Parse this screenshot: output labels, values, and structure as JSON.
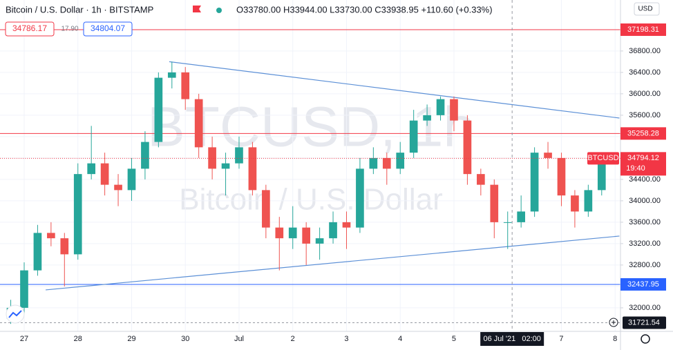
{
  "header": {
    "symbol": "Bitcoin / U.S. Dollar · 1h · BITSTAMP",
    "ohlc": "O33780.00 H33944.00 L33730.00 C33938.95 +110.60 (+0.33%)",
    "bid": "34786.17",
    "spread": "17.90",
    "ask": "34804.07",
    "currency": "USD"
  },
  "watermark": {
    "line1": "BTCUSD, 1h",
    "line2": "Bitcoin / U.S. Dollar"
  },
  "chart_data": {
    "type": "candlestick",
    "x": [
      -0.25,
      0,
      0.25,
      0.5,
      0.75,
      1,
      1.25,
      1.5,
      1.75,
      2,
      2.25,
      2.5,
      2.75,
      3,
      3.25,
      3.5,
      3.75,
      4,
      4.25,
      4.5,
      4.75,
      5,
      5.25,
      5.5,
      5.75,
      6,
      6.25,
      6.5,
      6.75,
      7,
      7.25,
      7.5,
      7.75,
      8,
      8.25,
      8.5,
      8.75,
      9,
      9.25,
      9.5,
      9.75,
      10,
      10.25,
      10.5,
      10.75
    ],
    "open": [
      31800,
      32000,
      32700,
      33400,
      33300,
      33000,
      34500,
      34700,
      34300,
      34200,
      34600,
      35100,
      36300,
      36400,
      35900,
      35000,
      34600,
      34700,
      35000,
      34200,
      33500,
      33300,
      33500,
      33200,
      33300,
      33600,
      33500,
      34600,
      34800,
      34600,
      34900,
      35500,
      35600,
      35900,
      35500,
      34500,
      34300,
      33600,
      33600,
      33800,
      34900,
      34800,
      34100,
      33800,
      34200
    ],
    "high": [
      32150,
      32850,
      33550,
      33600,
      33400,
      34700,
      35400,
      34900,
      34500,
      34800,
      35300,
      36400,
      36600,
      36500,
      36000,
      35200,
      34900,
      35200,
      35100,
      34300,
      33700,
      33900,
      33600,
      33500,
      33800,
      33800,
      34800,
      35000,
      34900,
      35100,
      35700,
      35800,
      35950,
      35950,
      35600,
      34600,
      34400,
      33800,
      34100,
      35000,
      35100,
      34900,
      34200,
      34300,
      34830
    ],
    "low": [
      31700,
      31900,
      32600,
      33150,
      32400,
      32900,
      34400,
      34100,
      33900,
      34000,
      34400,
      35000,
      36100,
      35700,
      34800,
      34400,
      34100,
      34600,
      34100,
      33300,
      32700,
      33100,
      32800,
      32900,
      33200,
      33100,
      33400,
      34500,
      34300,
      34500,
      34800,
      35400,
      35500,
      35300,
      34300,
      34100,
      33300,
      33100,
      33500,
      33700,
      34600,
      33900,
      33500,
      33700,
      34100
    ],
    "close": [
      32000,
      32700,
      33400,
      33300,
      33000,
      34500,
      34700,
      34300,
      34200,
      34600,
      35100,
      36300,
      36400,
      35900,
      35000,
      34600,
      34700,
      35000,
      34200,
      33500,
      33300,
      33500,
      33200,
      33300,
      33600,
      33500,
      34600,
      34800,
      34600,
      34900,
      35500,
      35600,
      35900,
      35500,
      34500,
      34300,
      33600,
      33600,
      33800,
      34900,
      34800,
      34100,
      33800,
      34200,
      34790
    ],
    "up_color": "#26a69a",
    "down_color": "#ef5350",
    "xlim": [
      -0.45,
      11.1
    ],
    "ylim": [
      31560,
      37753
    ],
    "xticks": [
      {
        "value": 0,
        "label": "27"
      },
      {
        "value": 1,
        "label": "28"
      },
      {
        "value": 2,
        "label": "29"
      },
      {
        "value": 3,
        "label": "30"
      },
      {
        "value": 4,
        "label": "Jul"
      },
      {
        "value": 5,
        "label": "2"
      },
      {
        "value": 6,
        "label": "3"
      },
      {
        "value": 7,
        "label": "4"
      },
      {
        "value": 8,
        "label": "5"
      },
      {
        "value": 10,
        "label": "7"
      },
      {
        "value": 11,
        "label": "8"
      }
    ],
    "yticks": [
      {
        "value": 32000,
        "label": "32000.00"
      },
      {
        "value": 32400,
        "label": "32400.00"
      },
      {
        "value": 32800,
        "label": "32800.00"
      },
      {
        "value": 33200,
        "label": "33200.00"
      },
      {
        "value": 33600,
        "label": "33600.00"
      },
      {
        "value": 34000,
        "label": "34000.00"
      },
      {
        "value": 34400,
        "label": "34400.00"
      },
      {
        "value": 34800,
        "label": "34800.00"
      },
      {
        "value": 35200,
        "label": "35200.00"
      },
      {
        "value": 35600,
        "label": "35600.00"
      },
      {
        "value": 36000,
        "label": "36000.00"
      },
      {
        "value": 36400,
        "label": "36400.00"
      },
      {
        "value": 36800,
        "label": "36800.00"
      }
    ],
    "levels": [
      {
        "value": 37198.31,
        "color": "#f23645"
      },
      {
        "value": 35258.28,
        "color": "#f23645"
      },
      {
        "value": 32437.95,
        "color": "#2962ff"
      }
    ],
    "low_level": {
      "value": 31721.54,
      "color": "#9598a1"
    },
    "last_price": {
      "value": 34794.12,
      "symbol": "BTCUSD",
      "countdown": "19:40",
      "color": "#f23645"
    },
    "trendlines": [
      {
        "x": [
          2.7,
          11.08
        ],
        "y": [
          36600,
          35547
        ],
        "color": "#5b8fd6"
      },
      {
        "x": [
          0.4,
          11.08
        ],
        "y": [
          32335,
          33341
        ],
        "color": "#5b8fd6"
      }
    ],
    "crosshair": {
      "x": 9.083,
      "label": "06 Jul '21   02:00"
    }
  }
}
